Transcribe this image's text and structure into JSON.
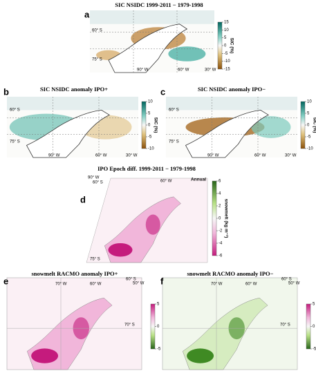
{
  "panels": [
    {
      "letter": "a",
      "title": "SIC NSIDC 1999-2011 − 1979-1998",
      "colorbar": {
        "label": "SIC (%)",
        "ticks": [
          15,
          10,
          5,
          0,
          -5,
          -10,
          -15
        ]
      },
      "map_labels": [
        "60° S",
        "75° S",
        "90° W",
        "60° W",
        "30° W"
      ]
    },
    {
      "letter": "b",
      "title": "SIC NSIDC anomaly  IPO+",
      "colorbar": {
        "label": "SIC (%)",
        "ticks": [
          10,
          5,
          0,
          -5,
          -10
        ]
      },
      "map_labels": [
        "60° S",
        "75° S",
        "90° W",
        "60° W",
        "30° W"
      ]
    },
    {
      "letter": "c",
      "title": "SIC NSIDC anomaly  IPO−",
      "colorbar": {
        "label": "SIC (%)",
        "ticks": [
          10,
          5,
          0,
          -5,
          -10
        ]
      },
      "map_labels": [
        "60° S",
        "75° S",
        "90° W",
        "60° W",
        "30° W"
      ]
    },
    {
      "letter": "d",
      "title": "IPO Epoch diff. 1999-2011 − 1979-1998",
      "annotation": "Annual",
      "colorbar": {
        "label": "snowmelt (kg m⁻²)",
        "ticks": [
          6,
          4,
          2,
          0,
          -2,
          -4,
          -6
        ]
      },
      "map_labels": [
        "90° W",
        "60° S",
        "60° W",
        "75° S"
      ]
    },
    {
      "letter": "e",
      "title": "snowmelt RACMO anomaly IPO+",
      "colorbar": {
        "label": "(kg m⁻²)",
        "ticks": [
          5,
          0,
          -5
        ]
      },
      "map_labels": [
        "70° W",
        "60° W",
        "60° S",
        "50° W",
        "70° S"
      ]
    },
    {
      "letter": "f",
      "title": "snowmelt RACMO anomaly IPO−",
      "colorbar": {
        "label": "(kg m⁻²)",
        "ticks": [
          5,
          0,
          -5
        ]
      },
      "map_labels": [
        "70° W",
        "60° W",
        "60° S",
        "50° W",
        "70° S"
      ]
    }
  ]
}
